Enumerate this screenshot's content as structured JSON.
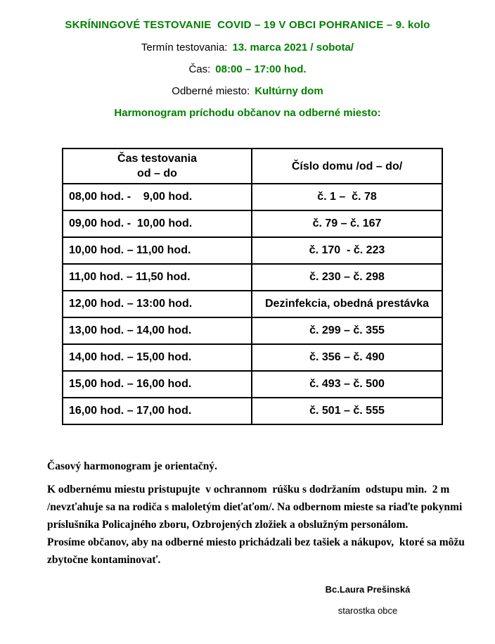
{
  "colors": {
    "accent_green": "#008000",
    "text": "#000000",
    "background": "#ffffff"
  },
  "header": {
    "title": "SKRÍNINGOVÉ TESTOVANIE  COVID – 19 V OBCI POHRANICE – 9. kolo",
    "termin_label": "Termín testovania:",
    "termin_value": "13. marca 2021 / sobota/",
    "cas_label": "Čas:",
    "cas_value": "08:00 – 17:00 hod.",
    "miesto_label": "Odberné miesto:",
    "miesto_value": "Kultúrny dom",
    "subtitle": "Harmonogram príchodu občanov na odberné miesto:"
  },
  "table": {
    "col1_header_line1": "Čas testovania",
    "col1_header_line2": "od – do",
    "col2_header": "Číslo domu /od – do/",
    "rows": [
      {
        "time": "08,00 hod. -    9,00 hod.",
        "houses": "č. 1 –  č. 78"
      },
      {
        "time": "09,00 hod. -  10,00 hod.",
        "houses": "č. 79 – č. 167"
      },
      {
        "time": "10,00 hod. – 11,00 hod.",
        "houses": "č. 170  - č. 223"
      },
      {
        "time": "11,00 hod. – 11,50 hod.",
        "houses": "č. 230 – č. 298"
      },
      {
        "time": "12,00 hod. – 13:00 hod.",
        "houses": "Dezinfekcia, obedná prestávka"
      },
      {
        "time": "13,00 hod. – 14,00 hod.",
        "houses": "č. 299 – č. 355"
      },
      {
        "time": "14,00 hod. – 15,00 hod.",
        "houses": "č. 356 – č. 490"
      },
      {
        "time": "15,00 hod. – 16,00 hod.",
        "houses": "č. 493 – č. 500"
      },
      {
        "time": "16,00 hod. – 17,00 hod.",
        "houses": "č. 501 – č. 555"
      }
    ]
  },
  "notes": {
    "p1": "Časový harmonogram je orientačný.",
    "p2_line1": "K odbernému miestu pristupujte  v ochrannom  rúšku s dodržaním  odstupu min.  2 m",
    "p2_line2": "/nevzťahuje sa na rodiča s maloletým dieťaťom/. Na odbernom mieste sa riaďte pokynmi",
    "p2_line3": "príslušníka Policajného zboru, Ozbrojených zložiek a obslužným personálom.",
    "p3_line1": "Prosíme občanov, aby na odberné miesto prichádzali bez tašiek a nákupov,  ktoré sa môžu",
    "p3_line2": "zbytočne kontaminovať."
  },
  "signature": {
    "name": "Bc.Laura Prešinská",
    "role": "starostka obce"
  }
}
